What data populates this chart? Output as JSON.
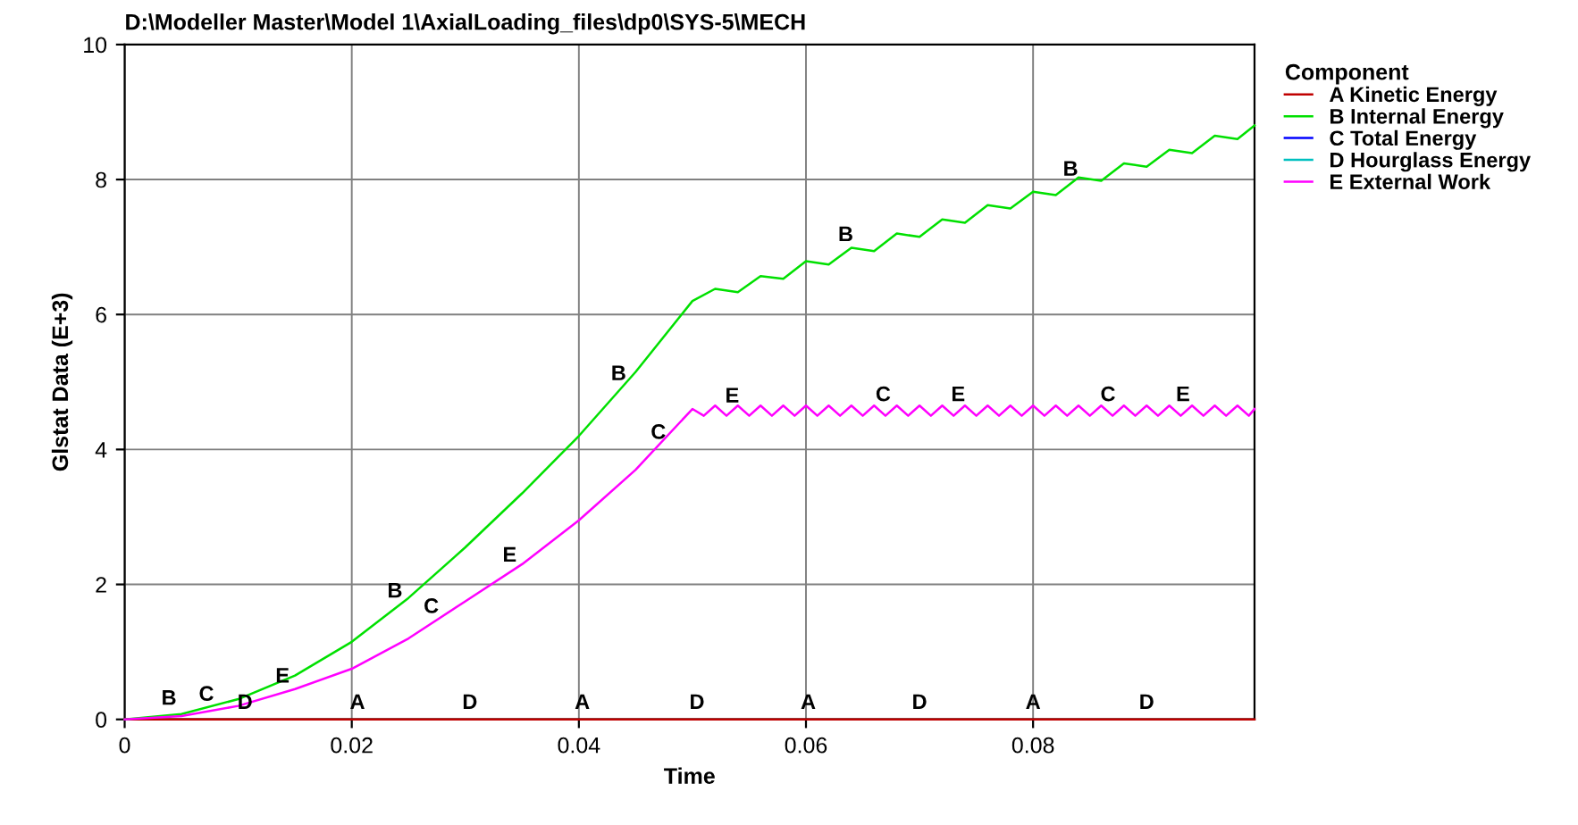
{
  "chart_data": {
    "type": "line",
    "title": "D:\\Modeller Master\\Model 1\\AxialLoading_files\\dp0\\SYS-5\\MECH",
    "xlabel": "Time",
    "ylabel": "Glstat Data (E+3)",
    "legend_title": "Component",
    "xlim": [
      0,
      0.0995
    ],
    "ylim": [
      0,
      10
    ],
    "xticks": [
      0,
      0.02,
      0.04,
      0.06,
      0.08
    ],
    "yticks": [
      0,
      2,
      4,
      6,
      8,
      10
    ],
    "grid": true,
    "legend": "right",
    "marker": "none",
    "line_style": "solid",
    "series": [
      {
        "name": "A Kinetic Energy",
        "color": "#c00000",
        "x": [
          0,
          0.0995
        ],
        "values": [
          0,
          0
        ]
      },
      {
        "name": "B Internal Energy",
        "color": "#00e000",
        "x": [
          0,
          0.005,
          0.01,
          0.015,
          0.02,
          0.025,
          0.03,
          0.035,
          0.04,
          0.045,
          0.05,
          0.052,
          0.054,
          0.056,
          0.058,
          0.06,
          0.062,
          0.064,
          0.066,
          0.068,
          0.07,
          0.072,
          0.074,
          0.076,
          0.078,
          0.08,
          0.082,
          0.084,
          0.086,
          0.088,
          0.09,
          0.092,
          0.094,
          0.096,
          0.098,
          0.0995
        ],
        "values": [
          0,
          0.08,
          0.3,
          0.65,
          1.15,
          1.8,
          2.55,
          3.35,
          4.2,
          5.15,
          6.2,
          6.38,
          6.33,
          6.57,
          6.53,
          6.79,
          6.74,
          6.99,
          6.94,
          7.2,
          7.15,
          7.41,
          7.36,
          7.62,
          7.57,
          7.82,
          7.77,
          8.03,
          7.98,
          8.24,
          8.19,
          8.44,
          8.39,
          8.65,
          8.6,
          8.8
        ]
      },
      {
        "name": "C Total Energy",
        "color": "#0000ff"
      },
      {
        "name": "D Hourglass Energy",
        "color": "#00c0c0"
      },
      {
        "name": "E External Work",
        "color": "#ff00ff",
        "x": [
          0,
          0.005,
          0.01,
          0.015,
          0.02,
          0.025,
          0.03,
          0.035,
          0.04,
          0.045,
          0.05,
          0.051,
          0.052,
          0.053,
          0.054,
          0.055,
          0.056,
          0.057,
          0.058,
          0.059,
          0.06,
          0.061,
          0.062,
          0.063,
          0.064,
          0.065,
          0.066,
          0.067,
          0.068,
          0.069,
          0.07,
          0.071,
          0.072,
          0.073,
          0.074,
          0.075,
          0.076,
          0.077,
          0.078,
          0.079,
          0.08,
          0.081,
          0.082,
          0.083,
          0.084,
          0.085,
          0.086,
          0.087,
          0.088,
          0.089,
          0.09,
          0.091,
          0.092,
          0.093,
          0.094,
          0.095,
          0.096,
          0.097,
          0.098,
          0.099,
          0.0995
        ],
        "values": [
          0,
          0.05,
          0.2,
          0.45,
          0.75,
          1.2,
          1.75,
          2.3,
          2.95,
          3.7,
          4.6,
          4.5,
          4.65,
          4.5,
          4.65,
          4.5,
          4.65,
          4.5,
          4.65,
          4.5,
          4.65,
          4.5,
          4.65,
          4.5,
          4.65,
          4.5,
          4.65,
          4.5,
          4.65,
          4.5,
          4.65,
          4.5,
          4.65,
          4.5,
          4.65,
          4.5,
          4.65,
          4.5,
          4.65,
          4.5,
          4.65,
          4.5,
          4.65,
          4.5,
          4.65,
          4.5,
          4.65,
          4.5,
          4.65,
          4.5,
          4.65,
          4.5,
          4.65,
          4.5,
          4.65,
          4.5,
          4.65,
          4.5,
          4.65,
          4.5,
          4.6
        ]
      }
    ],
    "annotations": [
      {
        "text": "A",
        "x": 0.0205,
        "y": 0
      },
      {
        "text": "A",
        "x": 0.0403,
        "y": 0
      },
      {
        "text": "A",
        "x": 0.0602,
        "y": 0
      },
      {
        "text": "A",
        "x": 0.08,
        "y": 0
      },
      {
        "text": "B",
        "x": 0.0039,
        "y": 0.06
      },
      {
        "text": "B",
        "x": 0.0238,
        "y": 1.65
      },
      {
        "text": "B",
        "x": 0.0435,
        "y": 4.87
      },
      {
        "text": "B",
        "x": 0.0635,
        "y": 6.93
      },
      {
        "text": "B",
        "x": 0.0833,
        "y": 7.9
      },
      {
        "text": "C",
        "x": 0.0072,
        "y": 0.12
      },
      {
        "text": "C",
        "x": 0.027,
        "y": 1.42
      },
      {
        "text": "C",
        "x": 0.047,
        "y": 4.0
      },
      {
        "text": "C",
        "x": 0.0668,
        "y": 4.56
      },
      {
        "text": "C",
        "x": 0.0866,
        "y": 4.56
      },
      {
        "text": "D",
        "x": 0.0106,
        "y": 0
      },
      {
        "text": "D",
        "x": 0.0304,
        "y": 0
      },
      {
        "text": "D",
        "x": 0.0504,
        "y": 0
      },
      {
        "text": "D",
        "x": 0.07,
        "y": 0
      },
      {
        "text": "D",
        "x": 0.09,
        "y": 0
      },
      {
        "text": "E",
        "x": 0.0139,
        "y": 0.39
      },
      {
        "text": "E",
        "x": 0.0339,
        "y": 2.18
      },
      {
        "text": "E",
        "x": 0.0535,
        "y": 4.54
      },
      {
        "text": "E",
        "x": 0.0734,
        "y": 4.56
      },
      {
        "text": "E",
        "x": 0.0932,
        "y": 4.56
      }
    ]
  }
}
